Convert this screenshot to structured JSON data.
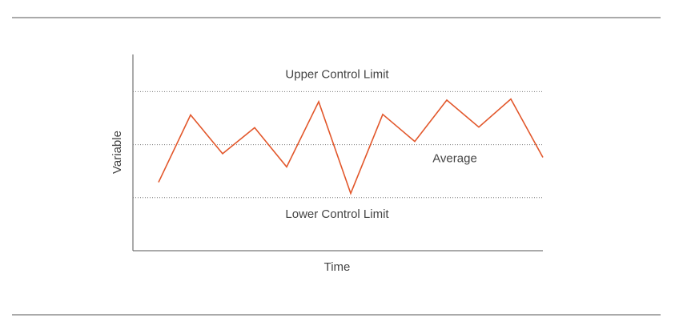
{
  "chart_data": {
    "type": "line",
    "x_label": "Time",
    "y_label": "Variable",
    "categories": [
      null,
      null,
      null,
      null,
      null,
      null,
      null,
      null,
      null,
      null,
      null,
      null,
      null
    ],
    "series": [
      {
        "color": "#e2572b",
        "values": [
          -0.71,
          0.56,
          -0.17,
          0.32,
          -0.42,
          0.81,
          -0.92,
          0.57,
          0.06,
          0.84,
          0.33,
          0.86,
          -0.24
        ]
      }
    ],
    "ylim": [
      -2,
      1.7
    ],
    "reference_lines": [
      {
        "label": "Upper Control Limit",
        "value": 1
      },
      {
        "label": "Average",
        "value": 0
      },
      {
        "label": "Lower Control Limit",
        "value": -1
      }
    ]
  }
}
